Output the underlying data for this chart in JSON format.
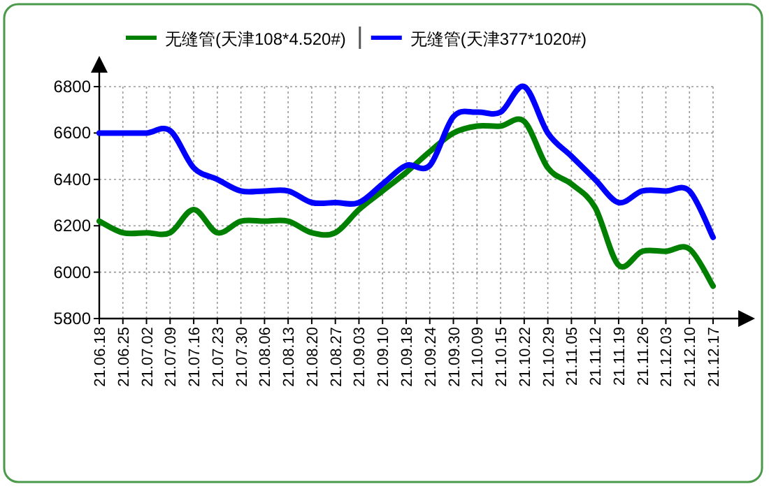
{
  "chart_data": {
    "type": "line",
    "categories": [
      "21.06.18",
      "21.06.25",
      "21.07.02",
      "21.07.09",
      "21.07.16",
      "21.07.23",
      "21.07.30",
      "21.08.06",
      "21.08.13",
      "21.08.20",
      "21.08.27",
      "21.09.03",
      "21.09.10",
      "21.09.18",
      "21.09.24",
      "21.09.30",
      "21.10.09",
      "21.10.15",
      "21.10.22",
      "21.10.29",
      "21.11.05",
      "21.11.12",
      "21.11.19",
      "21.11.26",
      "21.12.03",
      "21.12.10",
      "21.12.17"
    ],
    "series": [
      {
        "name": "无缝管(天津108*4.520#)",
        "color": "#008000",
        "values": [
          6220,
          6170,
          6170,
          6170,
          6270,
          6170,
          6220,
          6220,
          6220,
          6170,
          6170,
          6270,
          6350,
          6430,
          6520,
          6600,
          6630,
          6630,
          6650,
          6450,
          6380,
          6280,
          6030,
          6090,
          6090,
          6100,
          5940
        ]
      },
      {
        "name": "无缝管(天津377*1020#)",
        "color": "#0000ff",
        "values": [
          6600,
          6600,
          6600,
          6610,
          6450,
          6400,
          6350,
          6350,
          6350,
          6300,
          6300,
          6300,
          6380,
          6460,
          6460,
          6670,
          6690,
          6690,
          6800,
          6600,
          6500,
          6400,
          6300,
          6350,
          6350,
          6350,
          6150
        ]
      }
    ],
    "ylim": [
      5800,
      6800
    ],
    "yticks": [
      5800,
      6000,
      6200,
      6400,
      6600,
      6800
    ],
    "grid": true,
    "legend": "top",
    "marker": "none",
    "line_style": "solid"
  }
}
